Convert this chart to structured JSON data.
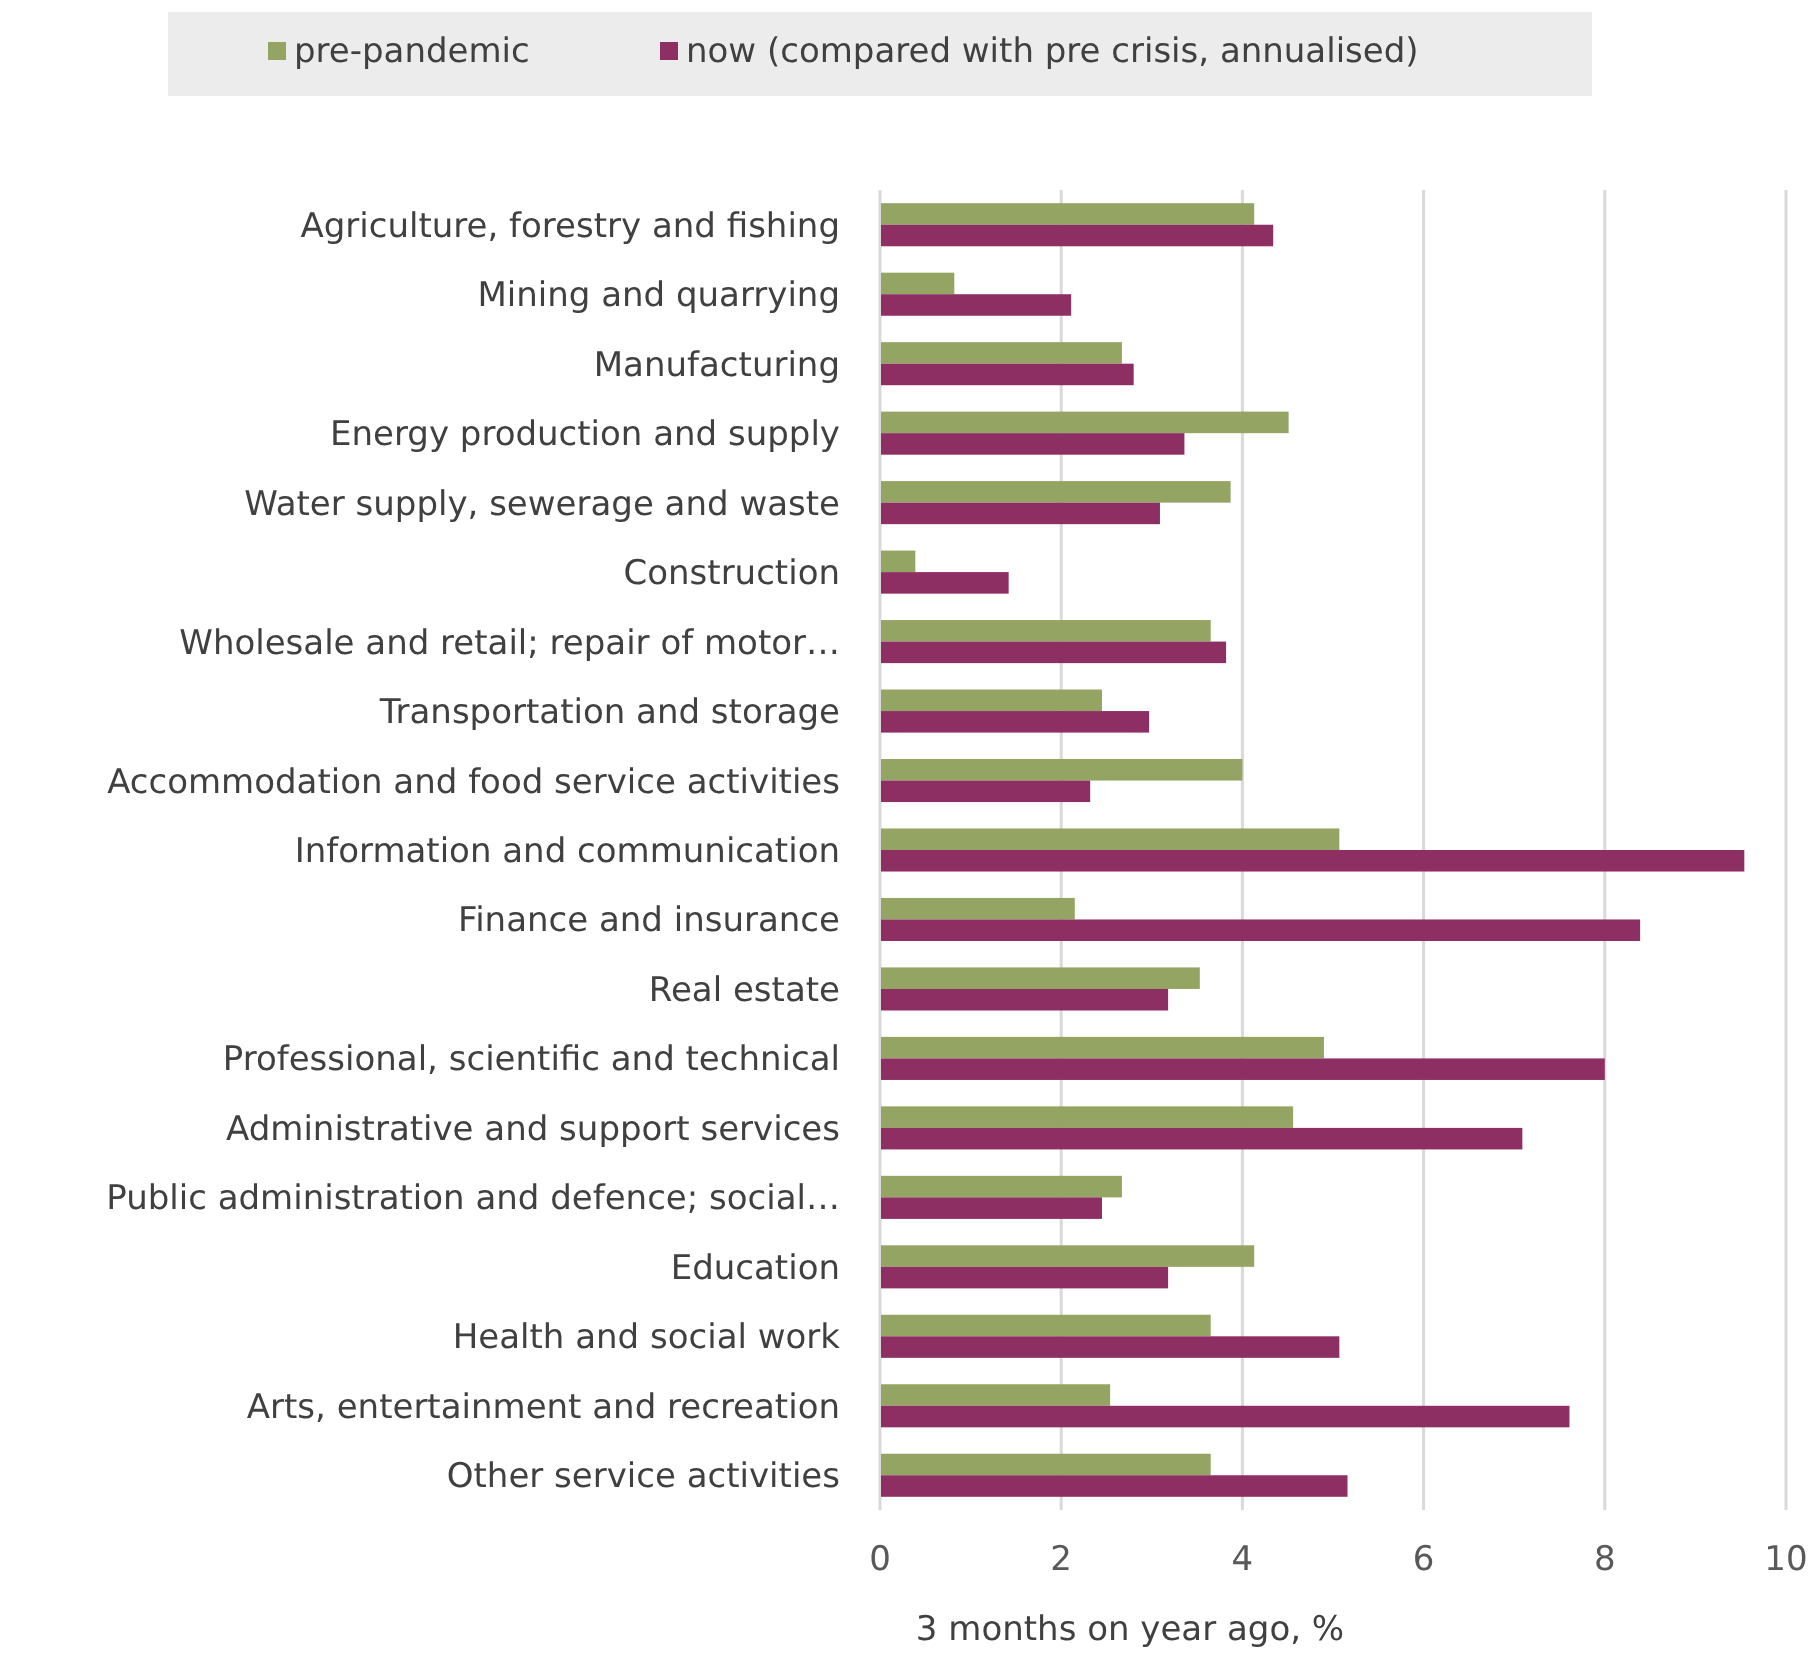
{
  "chart_data": {
    "type": "bar",
    "orientation": "horizontal",
    "xlabel": "3 months on year ago, %",
    "categories": [
      "Agriculture, forestry and fishing",
      "Mining and quarrying",
      "Manufacturing",
      "Energy production and supply",
      "Water supply, sewerage and waste",
      "Construction",
      "Wholesale and retail; repair of motor…",
      "Transportation and storage",
      "Accommodation and food service activities",
      "Information and communication",
      "Finance and insurance",
      "Real estate",
      "Professional, scientific and technical",
      "Administrative and support services",
      "Public administration and defence; social…",
      "Education",
      "Health and social work",
      "Arts, entertainment and recreation",
      "Other service activities"
    ],
    "series": [
      {
        "name": "pre-pandemic",
        "color": "#94a463",
        "values": [
          4.13,
          0.82,
          2.67,
          4.51,
          3.87,
          0.39,
          3.65,
          2.45,
          4.0,
          5.07,
          2.15,
          3.53,
          4.9,
          4.56,
          2.67,
          4.13,
          3.65,
          2.54,
          3.65
        ]
      },
      {
        "name": "now (compared with pre crisis, annualised)",
        "color": "#8d2f63",
        "values": [
          4.34,
          2.11,
          2.8,
          3.36,
          3.09,
          1.42,
          3.82,
          2.97,
          2.32,
          9.54,
          8.39,
          3.18,
          8.0,
          7.09,
          2.45,
          3.18,
          5.07,
          7.61,
          5.16
        ]
      }
    ],
    "xlim": [
      0,
      10
    ],
    "xticks": [
      0,
      2,
      4,
      6,
      8,
      10
    ],
    "grid": "x",
    "legend": "top"
  }
}
